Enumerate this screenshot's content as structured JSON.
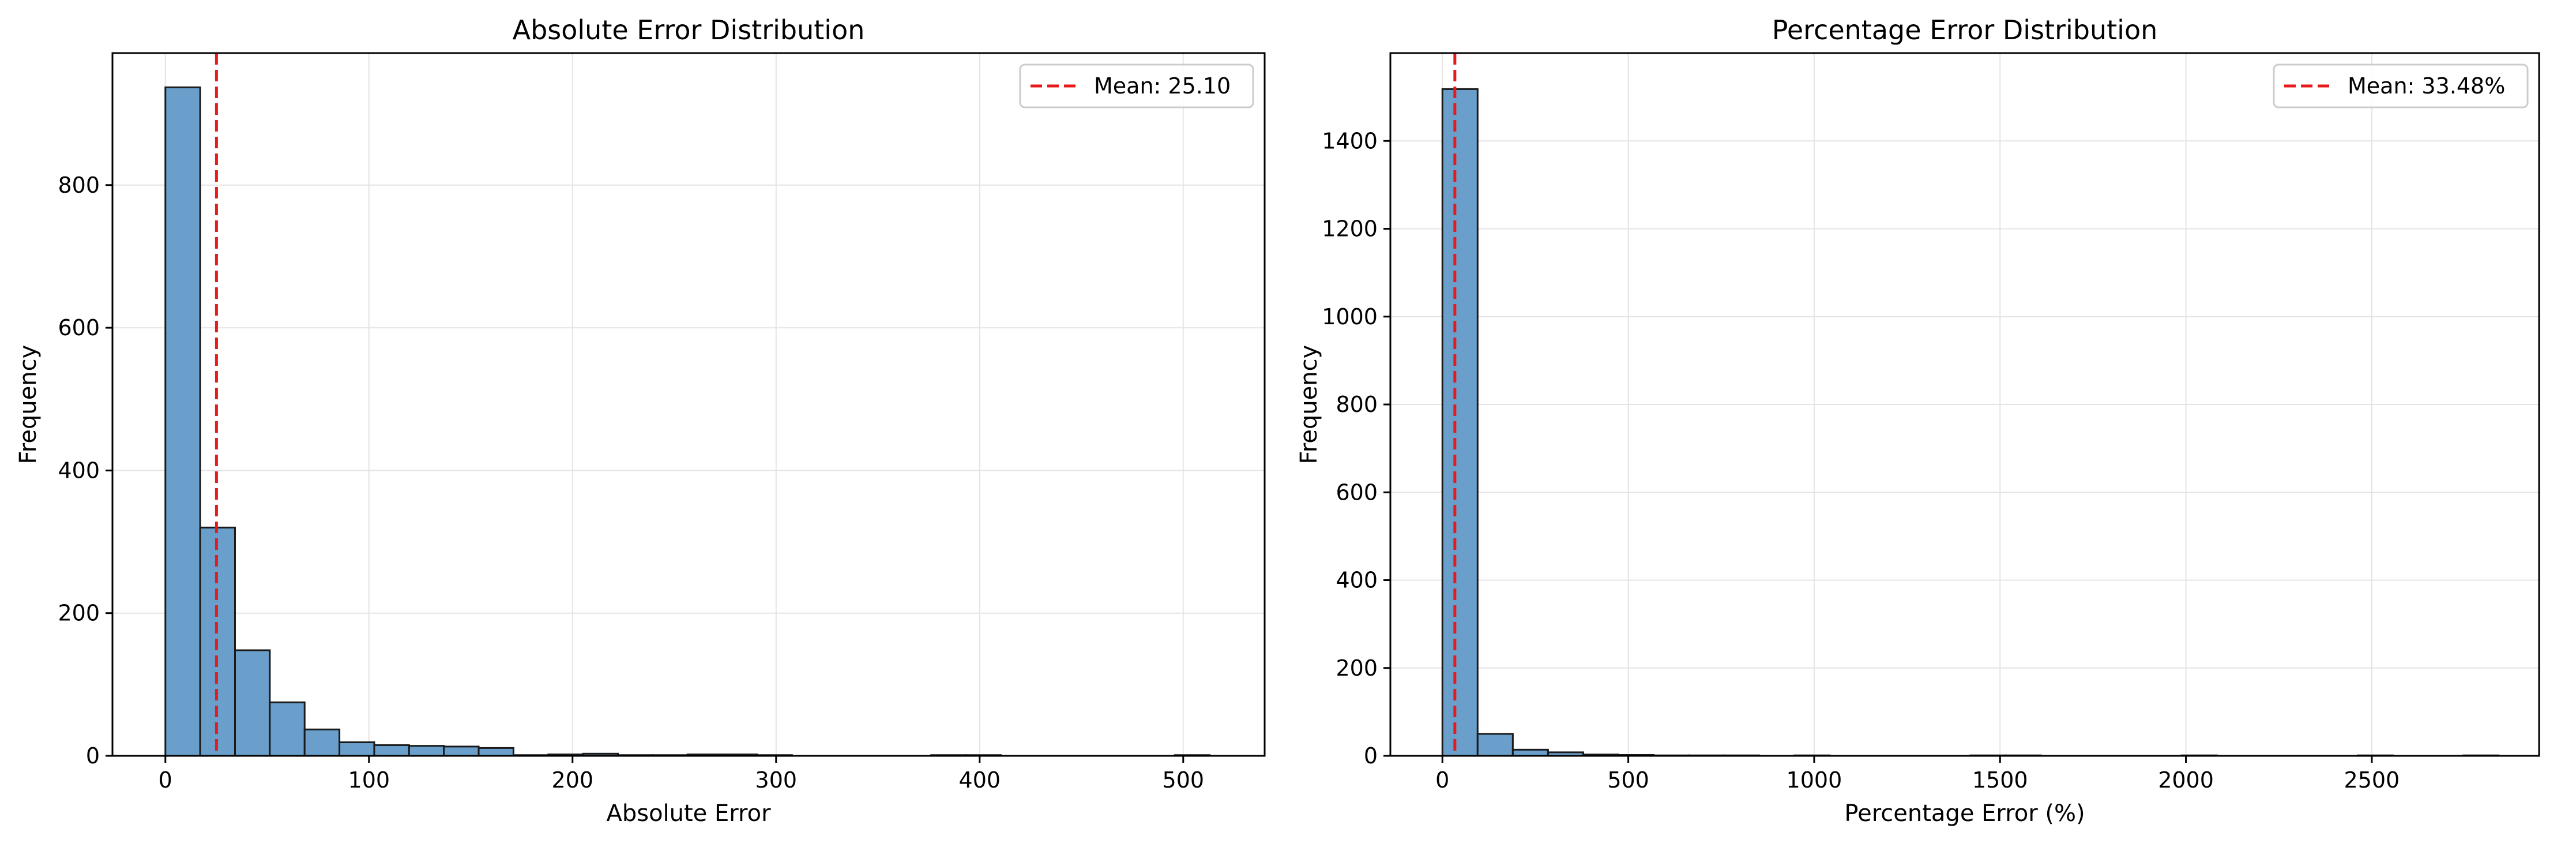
{
  "chart_data": [
    {
      "type": "bar",
      "title": "Absolute Error Distribution",
      "xlabel": "Absolute Error",
      "ylabel": "Frequency",
      "xlim": [
        -26,
        540
      ],
      "ylim": [
        0,
        985
      ],
      "xticks": [
        0,
        100,
        200,
        300,
        400,
        500
      ],
      "yticks": [
        0,
        200,
        400,
        600,
        800
      ],
      "bin_edges": [
        0,
        17.1,
        34.2,
        51.3,
        68.4,
        85.5,
        102.6,
        119.7,
        136.8,
        153.9,
        171.0,
        188.1,
        205.2,
        222.3,
        239.4,
        256.5,
        273.6,
        290.7,
        307.8,
        324.9,
        342.0,
        359.1,
        376.2,
        393.3,
        410.4,
        427.5,
        444.6,
        461.7,
        478.8,
        495.9,
        513.0
      ],
      "values": [
        937,
        320,
        148,
        75,
        37,
        19,
        15,
        14,
        13,
        11,
        1,
        2,
        3,
        1,
        1,
        2,
        2,
        1,
        0,
        0,
        0,
        0,
        1,
        1,
        0,
        0,
        0,
        0,
        0,
        1
      ],
      "mean_line": {
        "x": 25.1,
        "label": "Mean: 25.10"
      },
      "grid": true,
      "legend_position": "top-right",
      "colors": {
        "bar": "#6a9fcb",
        "edge": "#1a1a1a",
        "mean": "#e8191a",
        "grid": "#e4e4e4"
      }
    },
    {
      "type": "bar",
      "title": "Percentage Error Distribution",
      "xlabel": "Percentage Error (%)",
      "ylabel": "Frequency",
      "xlim": [
        -140,
        2950
      ],
      "ylim": [
        0,
        1600
      ],
      "xticks": [
        0,
        500,
        1000,
        1500,
        2000,
        2500
      ],
      "yticks": [
        0,
        200,
        400,
        600,
        800,
        1000,
        1200,
        1400
      ],
      "bin_edges": [
        0,
        94.7,
        189.4,
        284.1,
        378.8,
        473.5,
        568.2,
        662.9,
        757.6,
        852.3,
        947.0,
        1041.7,
        1136.4,
        1231.1,
        1325.8,
        1420.5,
        1515.2,
        1609.9,
        1704.6,
        1799.3,
        1894.0,
        1988.7,
        2083.4,
        2178.1,
        2272.8,
        2367.5,
        2462.2,
        2556.9,
        2651.6,
        2746.3,
        2841.0
      ],
      "values": [
        1518,
        50,
        14,
        8,
        3,
        2,
        1,
        1,
        1,
        0,
        1,
        0,
        0,
        0,
        0,
        1,
        1,
        0,
        0,
        0,
        0,
        1,
        0,
        0,
        0,
        0,
        1,
        0,
        0,
        1
      ],
      "mean_line": {
        "x": 33.48,
        "label": "Mean: 33.48%"
      },
      "grid": true,
      "legend_position": "top-right",
      "colors": {
        "bar": "#6a9fcb",
        "edge": "#1a1a1a",
        "mean": "#e8191a",
        "grid": "#e4e4e4"
      }
    }
  ]
}
